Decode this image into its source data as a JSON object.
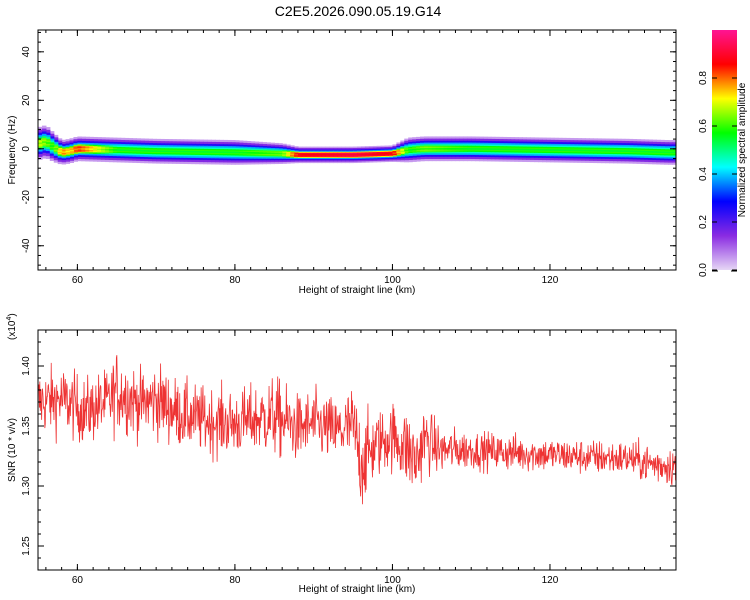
{
  "title": "C2E5.2026.090.05.19.G14",
  "chart_data": [
    {
      "type": "heatmap",
      "xlabel": "Height of straight line (km)",
      "ylabel": "Frequency (Hz)",
      "xlim": [
        55,
        136
      ],
      "ylim": [
        -50,
        49
      ],
      "x_ticks": [
        "60",
        "80",
        "100",
        "120"
      ],
      "y_ticks": [
        "40",
        "20",
        "0",
        "-20",
        "-40"
      ],
      "x_tick_values": [
        60,
        80,
        100,
        120
      ],
      "y_tick_values": [
        40,
        20,
        0,
        -20,
        -40
      ],
      "colorbar": {
        "label": "Normalized spectral amplitude",
        "range": [
          0,
          1
        ],
        "ticks": [
          "0.0",
          "0.2",
          "0.4",
          "0.6",
          "0.8"
        ],
        "tick_values": [
          0,
          0.2,
          0.4,
          0.6,
          0.8
        ],
        "colormap": [
          "#e6d6f5",
          "#8a2be2",
          "#0000ff",
          "#00ffff",
          "#00ff00",
          "#ffff00",
          "#ff0000",
          "#ff1493"
        ]
      },
      "ridge": {
        "height_km": [
          55,
          56,
          57,
          58,
          59,
          60,
          65,
          70,
          80,
          86,
          88,
          95,
          100,
          102,
          104,
          110,
          120,
          130,
          135
        ],
        "frequency_hz": [
          2,
          3,
          0.5,
          -1.5,
          -1,
          0,
          -0.5,
          -1,
          -1.5,
          -2,
          -2.5,
          -2.5,
          -2,
          -0.5,
          0,
          0,
          -0.5,
          -1,
          -1.5
        ],
        "amplitude": [
          0.65,
          0.6,
          0.55,
          0.75,
          0.7,
          0.8,
          0.55,
          0.55,
          0.55,
          0.6,
          0.85,
          0.9,
          0.85,
          0.55,
          0.6,
          0.55,
          0.55,
          0.55,
          0.55
        ],
        "width_hz": [
          4,
          4,
          3.5,
          3,
          3,
          3,
          3,
          3,
          3,
          2.5,
          2,
          2,
          2,
          3,
          3,
          3,
          3,
          3,
          3
        ]
      }
    },
    {
      "type": "line",
      "xlabel": "Height of straight line (km)",
      "ylabel": "SNR (10 * v/v)",
      "scale_label": "(x10",
      "scale_exponent": "4",
      "xlim": [
        55,
        136
      ],
      "ylim": [
        1.23,
        1.43
      ],
      "x_ticks": [
        "60",
        "80",
        "100",
        "120"
      ],
      "y_ticks": [
        "1.25",
        "1.30",
        "1.35",
        "1.40"
      ],
      "x_tick_values": [
        60,
        80,
        100,
        120
      ],
      "y_tick_values": [
        1.25,
        1.3,
        1.35,
        1.4
      ],
      "color": "#ee3333",
      "series": [
        {
          "x": [
            55,
            58,
            61,
            64,
            65,
            68,
            70,
            73,
            76,
            80,
            82,
            85,
            88,
            90,
            93,
            95,
            96,
            98,
            100,
            102,
            103,
            104,
            106,
            110,
            115,
            120,
            125,
            130,
            133,
            136
          ],
          "y": [
            1.37,
            1.372,
            1.362,
            1.37,
            1.38,
            1.368,
            1.372,
            1.36,
            1.355,
            1.352,
            1.355,
            1.358,
            1.348,
            1.352,
            1.345,
            1.35,
            1.32,
            1.335,
            1.342,
            1.33,
            1.32,
            1.34,
            1.33,
            1.33,
            1.328,
            1.326,
            1.324,
            1.323,
            1.318,
            1.317
          ],
          "noise": [
            0.025,
            0.025,
            0.025,
            0.025,
            0.03,
            0.025,
            0.028,
            0.025,
            0.025,
            0.025,
            0.025,
            0.03,
            0.025,
            0.025,
            0.025,
            0.03,
            0.035,
            0.025,
            0.025,
            0.03,
            0.03,
            0.025,
            0.018,
            0.014,
            0.014,
            0.013,
            0.013,
            0.013,
            0.015,
            0.015
          ]
        }
      ]
    }
  ]
}
